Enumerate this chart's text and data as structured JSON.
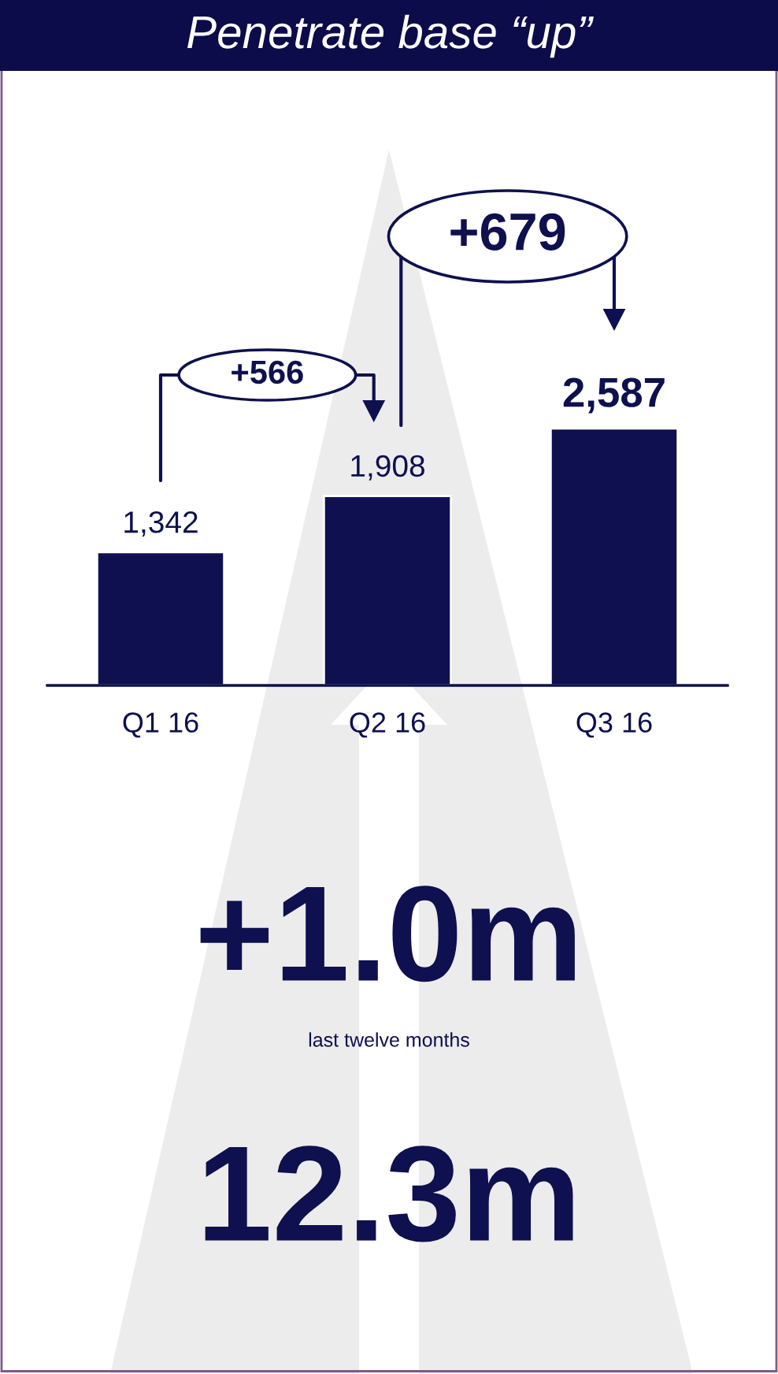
{
  "chart_data": {
    "type": "bar",
    "title": "Penetrate base “up”",
    "categories": [
      "Q1 16",
      "Q2 16",
      "Q3 16"
    ],
    "values": [
      1342,
      1908,
      2587
    ],
    "color": "#0e104f",
    "data_labels": true,
    "value_labels": [
      "1,342",
      "1,908",
      "2,587"
    ],
    "annotations": [
      "+566",
      "+679",
      "+1.0m",
      "last twelve months",
      "12.3m"
    ]
  }
}
